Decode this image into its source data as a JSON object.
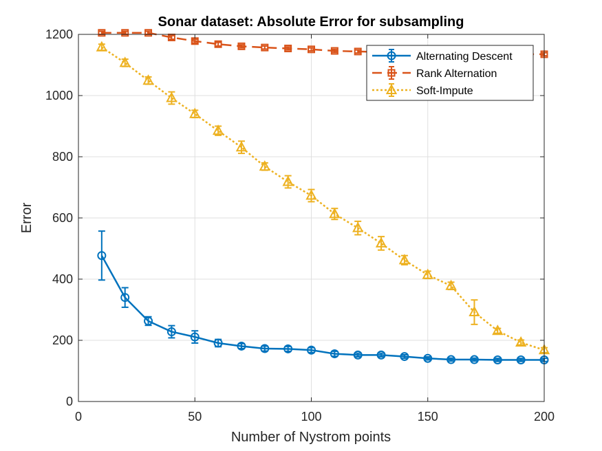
{
  "chart_data": {
    "type": "line",
    "title": "Sonar dataset: Absolute Error for subsampling",
    "xlabel": "Number of Nystrom points",
    "ylabel": "Error",
    "xlim": [
      0,
      200
    ],
    "ylim": [
      0,
      1200
    ],
    "xticks": [
      0,
      50,
      100,
      150,
      200
    ],
    "yticks": [
      0,
      200,
      400,
      600,
      800,
      1000,
      1200
    ],
    "grid": true,
    "legend_position": "top-right",
    "x": [
      10,
      20,
      30,
      40,
      50,
      60,
      70,
      80,
      90,
      100,
      110,
      120,
      130,
      140,
      150,
      160,
      170,
      180,
      190,
      200
    ],
    "series": [
      {
        "name": "Alternating Descent",
        "color": "#0072BD",
        "line_style": "solid",
        "marker": "circle",
        "values": [
          477,
          340,
          263,
          228,
          211,
          191,
          181,
          173,
          172,
          168,
          156,
          152,
          152,
          147,
          141,
          137,
          137,
          136,
          136,
          136
        ],
        "errors": [
          80,
          32,
          14,
          20,
          20,
          12,
          8,
          8,
          8,
          8,
          8,
          6,
          6,
          6,
          5,
          5,
          5,
          5,
          5,
          5
        ]
      },
      {
        "name": "Rank Alternation",
        "color": "#D95319",
        "line_style": "dashed",
        "marker": "square",
        "values": [
          1205,
          1205,
          1205,
          1190,
          1178,
          1168,
          1161,
          1157,
          1154,
          1151,
          1146,
          1144,
          1142,
          1140,
          1139,
          1138,
          1137,
          1136,
          1135,
          1135
        ],
        "errors": [
          5,
          5,
          5,
          6,
          6,
          6,
          5,
          5,
          5,
          5,
          5,
          5,
          5,
          5,
          5,
          5,
          5,
          5,
          5,
          5
        ]
      },
      {
        "name": "Soft-Impute",
        "color": "#EDB120",
        "line_style": "dotted",
        "marker": "triangle",
        "values": [
          1158,
          1107,
          1049,
          992,
          940,
          885,
          831,
          768,
          718,
          673,
          613,
          567,
          517,
          462,
          414,
          378,
          292,
          231,
          193,
          168
        ],
        "errors": [
          10,
          12,
          12,
          20,
          12,
          15,
          20,
          12,
          20,
          20,
          18,
          22,
          22,
          15,
          12,
          12,
          40,
          8,
          8,
          8
        ]
      }
    ]
  }
}
